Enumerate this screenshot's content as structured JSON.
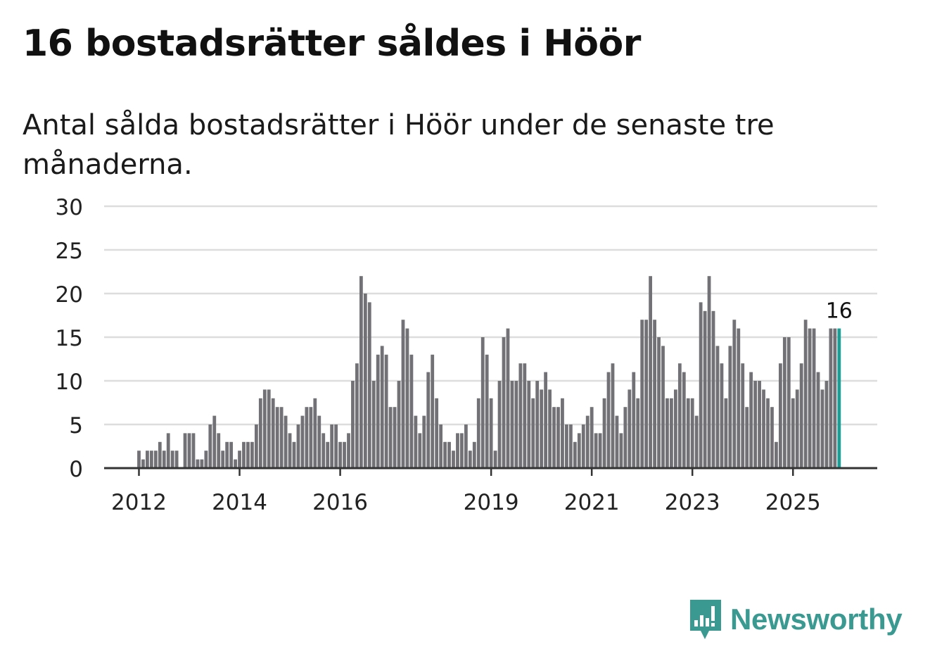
{
  "title": "16 bostadsrätter såldes i Höör",
  "subtitle": "Antal sålda bostadsrätter i Höör under de senaste tre månaderna.",
  "brand": {
    "name": "Newsworthy",
    "color": "#3a9a91",
    "icon": "newsworthy-logo-icon"
  },
  "chart_data": {
    "type": "bar",
    "title": "16 bostadsrätter såldes i Höör",
    "ylim": [
      0,
      30
    ],
    "yticks": [
      0,
      5,
      10,
      15,
      20,
      25,
      30
    ],
    "xtick_labels": [
      {
        "label": "2012",
        "index": 0
      },
      {
        "label": "2014",
        "index": 24
      },
      {
        "label": "2016",
        "index": 48
      },
      {
        "label": "2019",
        "index": 84
      },
      {
        "label": "2021",
        "index": 108
      },
      {
        "label": "2023",
        "index": 132
      },
      {
        "label": "2025",
        "index": 156
      }
    ],
    "start": "2012-01",
    "values": [
      2,
      1,
      2,
      2,
      2,
      3,
      2,
      4,
      2,
      2,
      0,
      4,
      4,
      4,
      1,
      1,
      2,
      5,
      6,
      4,
      2,
      3,
      3,
      1,
      2,
      3,
      3,
      3,
      5,
      8,
      9,
      9,
      8,
      7,
      7,
      6,
      4,
      3,
      5,
      6,
      7,
      7,
      8,
      6,
      4,
      3,
      5,
      5,
      3,
      3,
      4,
      10,
      12,
      22,
      20,
      19,
      10,
      13,
      14,
      13,
      7,
      7,
      10,
      17,
      16,
      13,
      6,
      4,
      6,
      11,
      13,
      8,
      5,
      3,
      3,
      2,
      4,
      4,
      5,
      2,
      3,
      8,
      15,
      13,
      8,
      2,
      10,
      15,
      16,
      10,
      10,
      12,
      12,
      10,
      8,
      10,
      9,
      11,
      9,
      7,
      7,
      8,
      5,
      5,
      3,
      4,
      5,
      6,
      7,
      4,
      4,
      8,
      11,
      12,
      6,
      4,
      7,
      9,
      11,
      8,
      17,
      17,
      22,
      17,
      15,
      14,
      8,
      8,
      9,
      12,
      11,
      8,
      8,
      6,
      19,
      18,
      22,
      18,
      14,
      12,
      8,
      14,
      17,
      16,
      12,
      7,
      11,
      10,
      10,
      9,
      8,
      7,
      3,
      12,
      15,
      15,
      8,
      9,
      12,
      17,
      16,
      16,
      11,
      9,
      10,
      16,
      16,
      16
    ],
    "highlight_index": 167,
    "highlight_label": "16",
    "colors": {
      "bar": "#727176",
      "highlight": "#1b9e95",
      "grid": "#dddddd",
      "axis": "#333333"
    }
  }
}
